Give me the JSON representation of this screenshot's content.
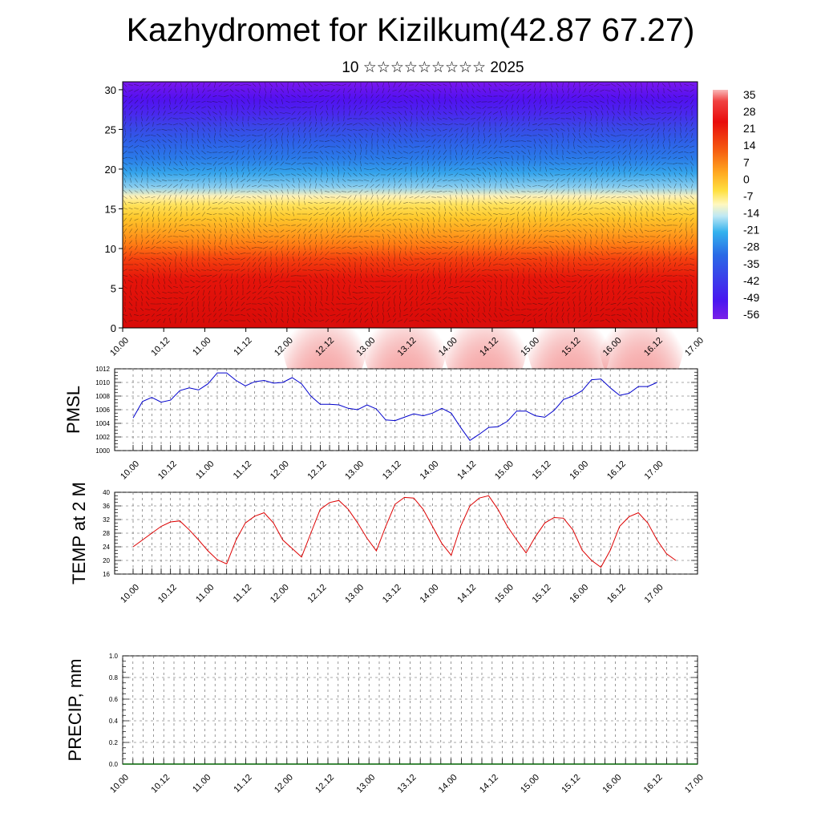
{
  "title": "Kazhydromet for Kizilkum(42.87 67.27)",
  "subtitle": "10 ☆☆☆☆☆☆☆☆☆ 2025",
  "colors": {
    "pmsl_line": "#0000cc",
    "temp_line": "#dd0000",
    "precip_line": "#006400"
  },
  "chart_data": [
    {
      "type": "heatmap",
      "title": "",
      "xlabel": "",
      "ylabel": "",
      "x_ticks": [
        "10.00",
        "10.12",
        "11.00",
        "11.12",
        "12.00",
        "12.12",
        "13.00",
        "13.12",
        "14.00",
        "14.12",
        "15.00",
        "15.12",
        "16.00",
        "16.12",
        "17.00"
      ],
      "y_ticks": [
        "0",
        "5",
        "10",
        "15",
        "20",
        "25",
        "30"
      ],
      "ylim": [
        0,
        31
      ],
      "colorbar_labels": [
        "35",
        "28",
        "21",
        "14",
        "7",
        "0",
        "-7",
        "-14",
        "-21",
        "-28",
        "-35",
        "-42",
        "-49",
        "-56"
      ],
      "overlay": "wind vectors"
    },
    {
      "type": "line",
      "ylabel": "PMSL",
      "x_ticks": [
        "10.00",
        "10.12",
        "11.00",
        "11.12",
        "12.00",
        "12.12",
        "13.00",
        "13.12",
        "14.00",
        "14.12",
        "15.00",
        "15.12",
        "16.00",
        "16.12",
        "17.00"
      ],
      "y_ticks": [
        "1000",
        "1002",
        "1004",
        "1006",
        "1008",
        "1010",
        "1012"
      ],
      "ylim": [
        1000,
        1012
      ],
      "series": [
        {
          "values": [
            1004.8,
            1007.2,
            1007.8,
            1007.1,
            1007.4,
            1008.8,
            1009.2,
            1008.9,
            1009.8,
            1011.4,
            1011.4,
            1010.3,
            1009.5,
            1010.1,
            1010.3,
            1009.9,
            1010.0,
            1010.7,
            1009.8,
            1008.0,
            1006.8,
            1006.8,
            1006.7,
            1006.2,
            1006.0,
            1006.7,
            1006.1,
            1004.5,
            1004.4,
            1004.9,
            1005.4,
            1005.1,
            1005.5,
            1006.2,
            1005.5,
            1003.4,
            1001.5,
            1002.4,
            1003.4,
            1003.5,
            1004.3,
            1005.8,
            1005.8,
            1005.1,
            1004.9,
            1005.9,
            1007.5,
            1008.0,
            1008.8,
            1010.4,
            1010.5,
            1009.2,
            1008.1,
            1008.4,
            1009.4,
            1009.4,
            1010.0
          ]
        }
      ]
    },
    {
      "type": "line",
      "ylabel": "TEMP at 2 M",
      "x_ticks": [
        "10.00",
        "10.12",
        "11.00",
        "11.12",
        "12.00",
        "12.12",
        "13.00",
        "13.12",
        "14.00",
        "14.12",
        "15.00",
        "15.12",
        "16.00",
        "16.12",
        "17.00"
      ],
      "y_ticks": [
        "16",
        "20",
        "24",
        "28",
        "32",
        "36",
        "40"
      ],
      "ylim": [
        16,
        40
      ],
      "series": [
        {
          "values": [
            24,
            26,
            28,
            30,
            31.3,
            31.6,
            29,
            26,
            22.8,
            20.2,
            19,
            26,
            31,
            33,
            34,
            31,
            26,
            23.5,
            21,
            28,
            35,
            37,
            37.6,
            35,
            31,
            26.5,
            22.8,
            30,
            36.5,
            38.5,
            38.3,
            35,
            30,
            25,
            21.5,
            30,
            36,
            38.3,
            39,
            35,
            30,
            26,
            22.2,
            27,
            31,
            32.6,
            32.4,
            29,
            23,
            20,
            18,
            23,
            30,
            32.8,
            34,
            31,
            26,
            22,
            20
          ]
        }
      ]
    },
    {
      "type": "line",
      "ylabel": "PRECIP, mm",
      "x_ticks": [
        "10.00",
        "10.12",
        "11.00",
        "11.12",
        "12.00",
        "12.12",
        "13.00",
        "13.12",
        "14.00",
        "14.12",
        "15.00",
        "15.12",
        "16.00",
        "16.12",
        "17.00"
      ],
      "y_ticks": [
        "0.0",
        "0.2",
        "0.4",
        "0.6",
        "0.8",
        "1.0"
      ],
      "ylim": [
        0,
        1
      ],
      "series": [
        {
          "values": [
            0,
            0,
            0,
            0,
            0,
            0,
            0,
            0,
            0,
            0,
            0,
            0,
            0,
            0,
            0
          ]
        }
      ]
    }
  ]
}
